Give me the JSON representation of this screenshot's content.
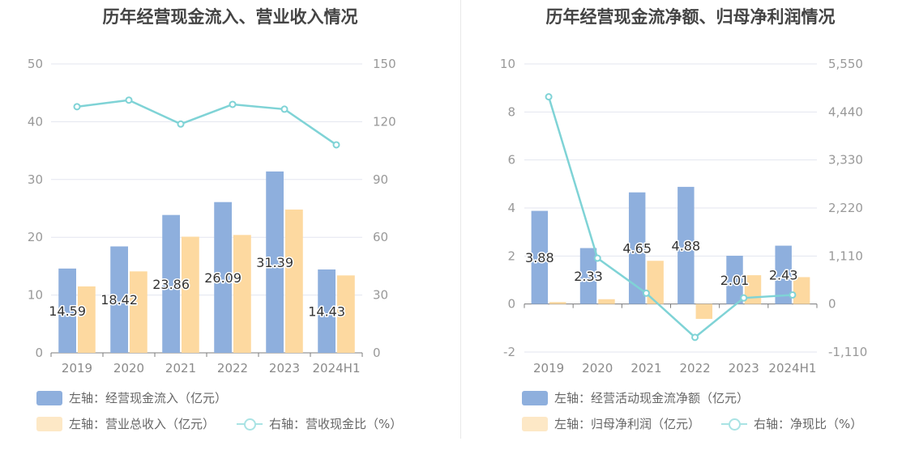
{
  "colors": {
    "bar_primary": "#8eafdd",
    "bar_secondary": "#fdd9a0",
    "line": "#7fd3d6",
    "grid": "#e3e6ef"
  },
  "chart_data": [
    {
      "type": "bar",
      "title": "历年经营现金流入、营业收入情况",
      "categories": [
        "2019",
        "2020",
        "2021",
        "2022",
        "2023",
        "2024H1"
      ],
      "y_left_ticks": [
        "0",
        "10",
        "20",
        "30",
        "40",
        "50"
      ],
      "y_right_ticks": [
        "0",
        "30",
        "60",
        "90",
        "120",
        "150"
      ],
      "ylim_left": [
        0,
        50
      ],
      "ylim_right": [
        0,
        150
      ],
      "grid": true,
      "legend_position": "bottom-left",
      "series": [
        {
          "name": "左轴：经营现金流入（亿元）",
          "kind": "bar",
          "axis": "left",
          "values": [
            14.59,
            18.42,
            23.86,
            26.09,
            31.39,
            14.43
          ],
          "labels": [
            "14.59",
            "18.42",
            "23.86",
            "26.09",
            "31.39",
            "14.43"
          ]
        },
        {
          "name": "左轴：营业总收入（亿元）",
          "kind": "bar",
          "axis": "left",
          "values": [
            11.5,
            14.1,
            20.1,
            20.4,
            24.8,
            13.4
          ]
        },
        {
          "name": "右轴：营收现金比（%）",
          "kind": "line",
          "axis": "right",
          "values": [
            127.8,
            131.2,
            118.8,
            129.0,
            126.5,
            108.0
          ]
        }
      ]
    },
    {
      "type": "bar",
      "title": "历年经营现金流净额、归母净利润情况",
      "categories": [
        "2019",
        "2020",
        "2021",
        "2022",
        "2023",
        "2024H1"
      ],
      "y_left_ticks": [
        "-2",
        "0",
        "2",
        "4",
        "6",
        "8",
        "10"
      ],
      "y_right_ticks": [
        "-1,110",
        "0",
        "1,110",
        "2,220",
        "3,330",
        "4,440",
        "5,550"
      ],
      "ylim_left": [
        -2,
        10
      ],
      "ylim_right": [
        -1110,
        5550
      ],
      "grid": true,
      "legend_position": "bottom-left",
      "series": [
        {
          "name": "左轴：经营活动现金流净额（亿元）",
          "kind": "bar",
          "axis": "left",
          "values": [
            3.88,
            2.33,
            4.65,
            4.88,
            2.01,
            2.43
          ],
          "labels": [
            "3.88",
            "2.33",
            "4.65",
            "4.88",
            "2.01",
            "2.43"
          ]
        },
        {
          "name": "左轴：归母净利润（亿元）",
          "kind": "bar",
          "axis": "left",
          "values": [
            0.08,
            0.2,
            1.8,
            -0.62,
            1.2,
            1.12
          ]
        },
        {
          "name": "右轴：净现比（%）",
          "kind": "line",
          "axis": "right",
          "values": [
            4790,
            1060,
            250,
            -770,
            140,
            210
          ]
        }
      ]
    }
  ]
}
